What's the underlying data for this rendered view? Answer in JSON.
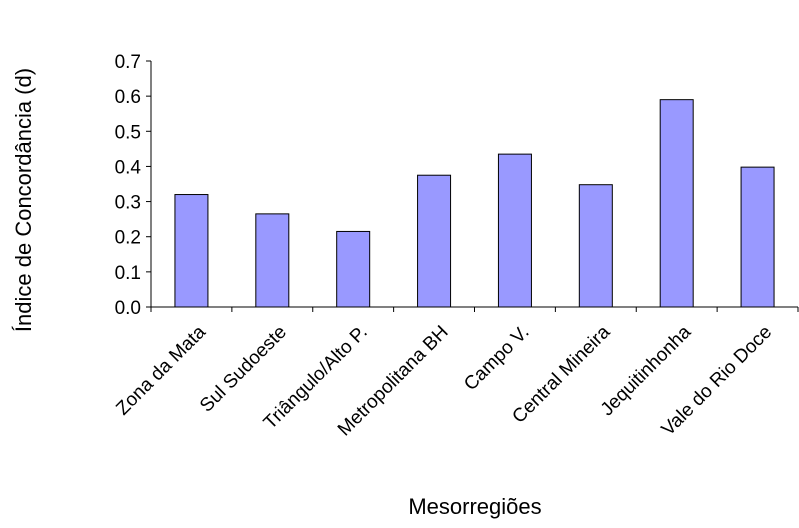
{
  "chart_data": {
    "type": "bar",
    "title": "",
    "xlabel": "Mesorregiões",
    "ylabel": "Índice de Concordância (d)",
    "categories": [
      "Zona da Mata",
      "Sul Sudoeste",
      "Triângulo/Alto P.",
      "Metropolitana BH",
      "Campo V.",
      "Central Mineira",
      "Jequitinhonha",
      "Vale do Rio Doce"
    ],
    "values": [
      0.32,
      0.265,
      0.215,
      0.375,
      0.435,
      0.348,
      0.59,
      0.398
    ],
    "ylim": [
      0,
      0.7
    ],
    "yticks": [
      "0.0",
      "0.1",
      "0.2",
      "0.3",
      "0.4",
      "0.5",
      "0.6",
      "0.7"
    ],
    "grid": false,
    "legend": "none",
    "bar_color": "#9999ff",
    "bar_edge_color": "#000000"
  }
}
